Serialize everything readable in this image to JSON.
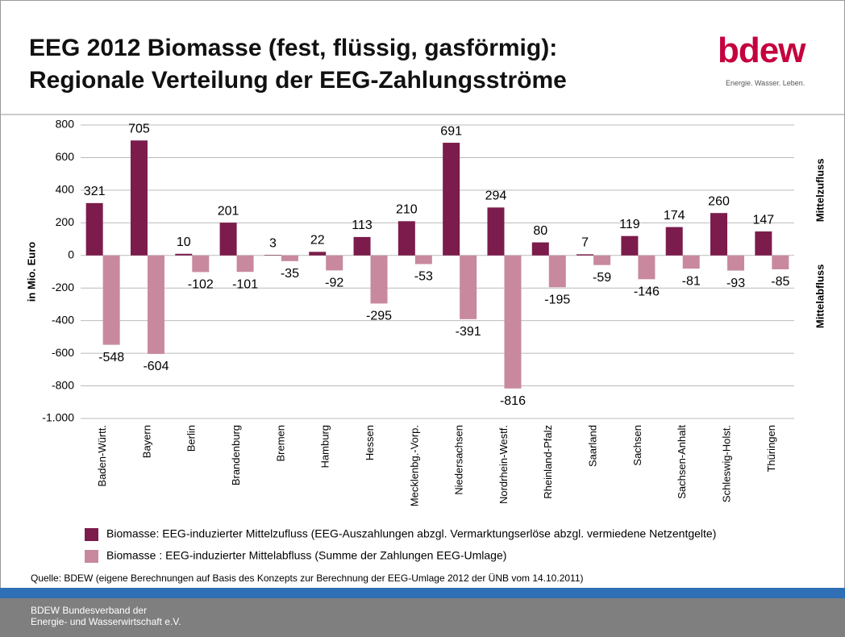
{
  "chart_data": {
    "type": "bar",
    "title": "EEG 2012 Biomasse (fest, flüssig, gasförmig): Regionale Verteilung der EEG-Zahlungsströme",
    "ylabel": "in Mio. Euro",
    "annotations": [
      "Mittelzufluss",
      "Mittelabfluss"
    ],
    "categories": [
      "Baden-Württ.",
      "Bayern",
      "Berlin",
      "Brandenburg",
      "Bremen",
      "Hamburg",
      "Hessen",
      "Mecklenbg.-Vorp.",
      "Niedersachsen",
      "Nordrhein-Westf.",
      "Rheinland-Pfalz",
      "Saarland",
      "Sachsen",
      "Sachsen-Anhalt",
      "Schleswig-Holst.",
      "Thüringen"
    ],
    "series": [
      {
        "name": "Biomasse: EEG-induzierter Mittelzufluss (EEG-Auszahlungen abzgl. Vermarktungserlöse abzgl. vermiedene Netzentgelte)",
        "color": "#7b1c4c",
        "values": [
          321,
          705,
          10,
          201,
          3,
          22,
          113,
          210,
          691,
          294,
          80,
          7,
          119,
          174,
          260,
          147
        ]
      },
      {
        "name": "Biomasse : EEG-induzierter Mittelabfluss (Summe der Zahlungen EEG-Umlage)",
        "color": "#c8899f",
        "values": [
          -548,
          -604,
          -102,
          -101,
          -35,
          -92,
          -295,
          -53,
          -391,
          -816,
          -195,
          -59,
          -146,
          -81,
          -93,
          -85
        ]
      }
    ],
    "ylim": [
      -1000,
      800
    ],
    "yticks": [
      {
        "value": -1000,
        "label": "-1.000"
      },
      -800,
      -600,
      -400,
      -200,
      0,
      200,
      400,
      600,
      800
    ],
    "grid": true
  },
  "logo": {
    "name": "bdew",
    "tagline": "Energie. Wasser. Leben."
  },
  "source": "Quelle: BDEW (eigene Berechnungen auf Basis des Konzepts zur Berechnung der EEG-Umlage 2012 der ÜNB vom 14.10.2011)",
  "footer": [
    "BDEW Bundesverband der",
    "Energie- und Wasserwirtschaft e.V."
  ]
}
